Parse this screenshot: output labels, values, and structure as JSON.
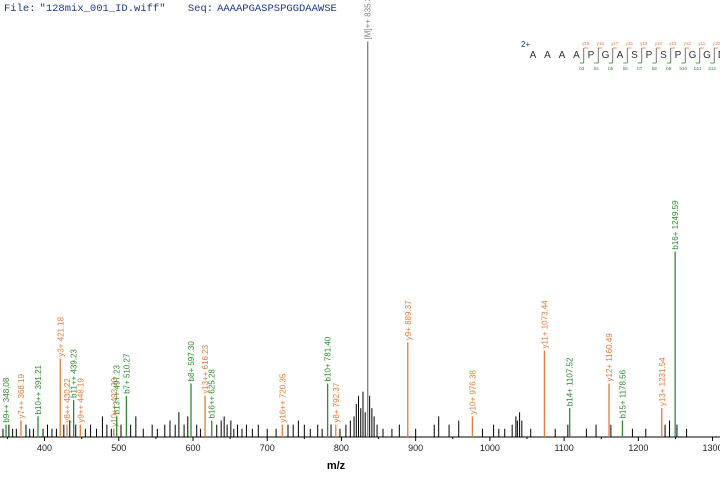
{
  "header": {
    "file_label": "File:",
    "file_name": "\"128mix_001_ID.wiff\"",
    "seq_label": "Seq:",
    "seq_value": "AAAAPGASPSPGGDAAWSE"
  },
  "peptide_map": {
    "charge": "2+",
    "residues": [
      "A",
      "A",
      "A",
      "A",
      "P",
      "G",
      "A",
      "S",
      "P",
      "S",
      "P",
      "G",
      "G",
      "D"
    ],
    "y_labels": [
      "y19",
      "y18",
      "y17",
      "y16",
      "y15",
      "y14",
      "y13",
      "y12",
      "y11",
      "y10",
      "y9",
      "y8",
      "y7",
      "y6"
    ],
    "b_labels": [
      "b3",
      "b4",
      "b5",
      "b6",
      "b7",
      "b8",
      "b9",
      "b10",
      "b11",
      "b12",
      "b13",
      "b14",
      "b15",
      "b16"
    ]
  },
  "colors": {
    "header": "#1f3a8a",
    "b_ion": "#2e8b2e",
    "y_ion": "#e07b39",
    "precursor": "#808080",
    "noise": "#000000",
    "axis": "#000000"
  },
  "chart_data": {
    "type": "bar",
    "title": "",
    "xlabel": "m/z",
    "ylabel": "",
    "xlim": [
      340,
      1310
    ],
    "ylim": [
      0,
      100
    ],
    "x_ticks": [
      400,
      500,
      600,
      700,
      800,
      900,
      1000,
      1100,
      1200,
      1300
    ],
    "series": [
      {
        "id": "precursor",
        "peaks": [
          {
            "mz": 835.39,
            "intensity": 96,
            "label": "[M]++ 835.39"
          }
        ]
      },
      {
        "id": "b",
        "peaks": [
          {
            "mz": 348.08,
            "intensity": 3,
            "label": "b9++ 348.08"
          },
          {
            "mz": 391.21,
            "intensity": 5,
            "label": "b10++ 391.21"
          },
          {
            "mz": 439.23,
            "intensity": 9,
            "label": "b11++ 439.23"
          },
          {
            "mz": 497.23,
            "intensity": 5,
            "label": "b13++ 497.23"
          },
          {
            "mz": 510.27,
            "intensity": 10,
            "label": "b7+ 510.27"
          },
          {
            "mz": 597.3,
            "intensity": 13,
            "label": "b8+ 597.30"
          },
          {
            "mz": 625.28,
            "intensity": 4,
            "label": "b16++ 625.28"
          },
          {
            "mz": 781.4,
            "intensity": 13,
            "label": "b10+ 781.40"
          },
          {
            "mz": 1107.52,
            "intensity": 7,
            "label": "b14+ 1107.52"
          },
          {
            "mz": 1178.56,
            "intensity": 4,
            "label": "b15+ 1178.56"
          },
          {
            "mz": 1249.59,
            "intensity": 45,
            "label": "b16+ 1249.59"
          }
        ]
      },
      {
        "id": "y",
        "peaks": [
          {
            "mz": 368.19,
            "intensity": 4,
            "label": "y7++ 368.19"
          },
          {
            "mz": 421.18,
            "intensity": 19,
            "label": "y3+ 421.18"
          },
          {
            "mz": 430.22,
            "intensity": 3,
            "label": "y8++ 430.22"
          },
          {
            "mz": 448.19,
            "intensity": 3,
            "label": "y9++ 448.19"
          },
          {
            "mz": 493.3,
            "intensity": 2,
            "label": "y10++ 493.30"
          },
          {
            "mz": 616.23,
            "intensity": 10,
            "label": "y13++ 616.23"
          },
          {
            "mz": 720.35,
            "intensity": 3,
            "label": "y16++ 720.35"
          },
          {
            "mz": 792.37,
            "intensity": 3,
            "label": "y8+ 792.37"
          },
          {
            "mz": 889.37,
            "intensity": 23,
            "label": "y9+ 889.37"
          },
          {
            "mz": 976.38,
            "intensity": 5,
            "label": "y10+ 976.38"
          },
          {
            "mz": 1073.44,
            "intensity": 21,
            "label": "y11+ 1073.44"
          },
          {
            "mz": 1160.49,
            "intensity": 13,
            "label": "y12+ 1160.49"
          },
          {
            "mz": 1231.54,
            "intensity": 7,
            "label": "y13+ 1231.54"
          }
        ]
      },
      {
        "id": "noise",
        "peaks": [
          {
            "mz": 344,
            "intensity": 2
          },
          {
            "mz": 352,
            "intensity": 3
          },
          {
            "mz": 357,
            "intensity": 2
          },
          {
            "mz": 362,
            "intensity": 2
          },
          {
            "mz": 375,
            "intensity": 3
          },
          {
            "mz": 380,
            "intensity": 2
          },
          {
            "mz": 385,
            "intensity": 2
          },
          {
            "mz": 398,
            "intensity": 2
          },
          {
            "mz": 404,
            "intensity": 3
          },
          {
            "mz": 410,
            "intensity": 2
          },
          {
            "mz": 416,
            "intensity": 2
          },
          {
            "mz": 426,
            "intensity": 3
          },
          {
            "mz": 434,
            "intensity": 4
          },
          {
            "mz": 442,
            "intensity": 3
          },
          {
            "mz": 455,
            "intensity": 2
          },
          {
            "mz": 462,
            "intensity": 3
          },
          {
            "mz": 470,
            "intensity": 2
          },
          {
            "mz": 478,
            "intensity": 5
          },
          {
            "mz": 484,
            "intensity": 3
          },
          {
            "mz": 490,
            "intensity": 2
          },
          {
            "mz": 503,
            "intensity": 3
          },
          {
            "mz": 516,
            "intensity": 3
          },
          {
            "mz": 523,
            "intensity": 5
          },
          {
            "mz": 533,
            "intensity": 2
          },
          {
            "mz": 545,
            "intensity": 3
          },
          {
            "mz": 552,
            "intensity": 2
          },
          {
            "mz": 562,
            "intensity": 3
          },
          {
            "mz": 569,
            "intensity": 4
          },
          {
            "mz": 576,
            "intensity": 3
          },
          {
            "mz": 581,
            "intensity": 6
          },
          {
            "mz": 588,
            "intensity": 3
          },
          {
            "mz": 593,
            "intensity": 5
          },
          {
            "mz": 605,
            "intensity": 3
          },
          {
            "mz": 610,
            "intensity": 2
          },
          {
            "mz": 632,
            "intensity": 3
          },
          {
            "mz": 638,
            "intensity": 4
          },
          {
            "mz": 642,
            "intensity": 5
          },
          {
            "mz": 646,
            "intensity": 3
          },
          {
            "mz": 651,
            "intensity": 4
          },
          {
            "mz": 655,
            "intensity": 2
          },
          {
            "mz": 660,
            "intensity": 3
          },
          {
            "mz": 666,
            "intensity": 2
          },
          {
            "mz": 672,
            "intensity": 3
          },
          {
            "mz": 680,
            "intensity": 2
          },
          {
            "mz": 688,
            "intensity": 3
          },
          {
            "mz": 700,
            "intensity": 2
          },
          {
            "mz": 712,
            "intensity": 2
          },
          {
            "mz": 728,
            "intensity": 3
          },
          {
            "mz": 735,
            "intensity": 3
          },
          {
            "mz": 742,
            "intensity": 4
          },
          {
            "mz": 750,
            "intensity": 3
          },
          {
            "mz": 758,
            "intensity": 2
          },
          {
            "mz": 768,
            "intensity": 3
          },
          {
            "mz": 774,
            "intensity": 2
          },
          {
            "mz": 786,
            "intensity": 3
          },
          {
            "mz": 798,
            "intensity": 2
          },
          {
            "mz": 806,
            "intensity": 3
          },
          {
            "mz": 812,
            "intensity": 4
          },
          {
            "mz": 817,
            "intensity": 5
          },
          {
            "mz": 820,
            "intensity": 8
          },
          {
            "mz": 823,
            "intensity": 10
          },
          {
            "mz": 826,
            "intensity": 7
          },
          {
            "mz": 829,
            "intensity": 11
          },
          {
            "mz": 832,
            "intensity": 6
          },
          {
            "mz": 838,
            "intensity": 10
          },
          {
            "mz": 841,
            "intensity": 7
          },
          {
            "mz": 844,
            "intensity": 5
          },
          {
            "mz": 848,
            "intensity": 3
          },
          {
            "mz": 856,
            "intensity": 2
          },
          {
            "mz": 868,
            "intensity": 2
          },
          {
            "mz": 878,
            "intensity": 3
          },
          {
            "mz": 900,
            "intensity": 2
          },
          {
            "mz": 925,
            "intensity": 3
          },
          {
            "mz": 931,
            "intensity": 5
          },
          {
            "mz": 945,
            "intensity": 3
          },
          {
            "mz": 958,
            "intensity": 4
          },
          {
            "mz": 990,
            "intensity": 2
          },
          {
            "mz": 1005,
            "intensity": 3
          },
          {
            "mz": 1012,
            "intensity": 2
          },
          {
            "mz": 1020,
            "intensity": 2
          },
          {
            "mz": 1030,
            "intensity": 3
          },
          {
            "mz": 1035,
            "intensity": 5
          },
          {
            "mz": 1037,
            "intensity": 4
          },
          {
            "mz": 1040,
            "intensity": 6
          },
          {
            "mz": 1043,
            "intensity": 4
          },
          {
            "mz": 1055,
            "intensity": 2
          },
          {
            "mz": 1088,
            "intensity": 2
          },
          {
            "mz": 1105,
            "intensity": 3
          },
          {
            "mz": 1130,
            "intensity": 2
          },
          {
            "mz": 1143,
            "intensity": 3
          },
          {
            "mz": 1163,
            "intensity": 3
          },
          {
            "mz": 1192,
            "intensity": 2
          },
          {
            "mz": 1210,
            "intensity": 2
          },
          {
            "mz": 1236,
            "intensity": 3
          },
          {
            "mz": 1242,
            "intensity": 4
          },
          {
            "mz": 1252,
            "intensity": 3
          },
          {
            "mz": 1265,
            "intensity": 2
          }
        ]
      }
    ]
  }
}
